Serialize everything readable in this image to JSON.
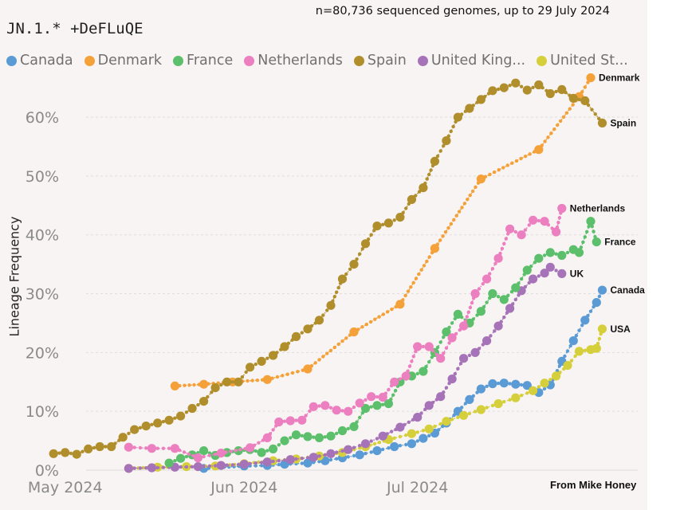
{
  "subtitle": "n=80,736 sequenced genomes, up to 29 July 2024",
  "title": "JN.1.* +DeFLuQE",
  "credit": "From Mike Honey",
  "legend": [
    {
      "label": "Canada",
      "color": "#5b9bd5"
    },
    {
      "label": "Denmark",
      "color": "#f4a13a"
    },
    {
      "label": "France",
      "color": "#5cbf6b"
    },
    {
      "label": "Netherlands",
      "color": "#ec7fbf"
    },
    {
      "label": "Spain",
      "color": "#b08e2c"
    },
    {
      "label": "United King...",
      "color": "#a673b8"
    },
    {
      "label": "United St...",
      "color": "#d6cf3c"
    }
  ],
  "chart_data": {
    "type": "line",
    "ylabel": "Lineage Frequency",
    "ylim": [
      0,
      68
    ],
    "y_ticks": [
      {
        "value": 0,
        "label": "0%"
      },
      {
        "value": 10,
        "label": "10%"
      },
      {
        "value": 20,
        "label": "20%"
      },
      {
        "value": 30,
        "label": "30%"
      },
      {
        "value": 40,
        "label": "40%"
      },
      {
        "value": 50,
        "label": "50%"
      },
      {
        "value": 60,
        "label": "60%"
      }
    ],
    "x_ticks": [
      {
        "value": "2024-05-01",
        "label": "May 2024"
      },
      {
        "value": "2024-06-01",
        "label": "Jun 2024"
      },
      {
        "value": "2024-07-01",
        "label": "Jul 2024"
      }
    ],
    "xlim": [
      "2024-04-28",
      "2024-08-04"
    ],
    "series": [
      {
        "name": "Canada",
        "end_label": "Canada",
        "color": "#5b9bd5",
        "points": [
          [
            "2024-05-25",
            0.3
          ],
          [
            "2024-06-01",
            0.7
          ],
          [
            "2024-06-05",
            0.8
          ],
          [
            "2024-06-08",
            1.0
          ],
          [
            "2024-06-12",
            1.2
          ],
          [
            "2024-06-15",
            1.6
          ],
          [
            "2024-06-18",
            2.1
          ],
          [
            "2024-06-21",
            2.6
          ],
          [
            "2024-06-24",
            3.3
          ],
          [
            "2024-06-27",
            4.0
          ],
          [
            "2024-06-30",
            4.5
          ],
          [
            "2024-07-02",
            5.4
          ],
          [
            "2024-07-04",
            6.3
          ],
          [
            "2024-07-06",
            8.0
          ],
          [
            "2024-07-08",
            10.0
          ],
          [
            "2024-07-10",
            12.0
          ],
          [
            "2024-07-12",
            13.8
          ],
          [
            "2024-07-14",
            14.7
          ],
          [
            "2024-07-16",
            14.8
          ],
          [
            "2024-07-18",
            14.6
          ],
          [
            "2024-07-20",
            14.4
          ],
          [
            "2024-07-22",
            13.2
          ],
          [
            "2024-07-24",
            14.5
          ],
          [
            "2024-07-26",
            18.5
          ],
          [
            "2024-07-28",
            22.0
          ],
          [
            "2024-07-30",
            25.5
          ],
          [
            "2024-08-01",
            28.5
          ],
          [
            "2024-08-02",
            30.6
          ]
        ]
      },
      {
        "name": "Denmark",
        "end_label": "Denmark",
        "color": "#f4a13a",
        "points": [
          [
            "2024-05-20",
            14.3
          ],
          [
            "2024-05-25",
            14.6
          ],
          [
            "2024-05-30",
            15.0
          ],
          [
            "2024-06-05",
            15.4
          ],
          [
            "2024-06-12",
            17.2
          ],
          [
            "2024-06-20",
            23.5
          ],
          [
            "2024-06-28",
            28.2
          ],
          [
            "2024-07-04",
            37.7
          ],
          [
            "2024-07-12",
            49.5
          ],
          [
            "2024-07-22",
            54.5
          ],
          [
            "2024-07-29",
            63.5
          ],
          [
            "2024-07-31",
            66.7
          ]
        ]
      },
      {
        "name": "France",
        "end_label": "France",
        "color": "#5cbf6b",
        "points": [
          [
            "2024-05-19",
            1.2
          ],
          [
            "2024-05-21",
            2.0
          ],
          [
            "2024-05-23",
            2.6
          ],
          [
            "2024-05-25",
            3.3
          ],
          [
            "2024-05-27",
            2.5
          ],
          [
            "2024-05-29",
            3.0
          ],
          [
            "2024-05-31",
            3.3
          ],
          [
            "2024-06-02",
            3.5
          ],
          [
            "2024-06-04",
            3.0
          ],
          [
            "2024-06-06",
            3.6
          ],
          [
            "2024-06-08",
            5.0
          ],
          [
            "2024-06-10",
            6.0
          ],
          [
            "2024-06-12",
            5.7
          ],
          [
            "2024-06-14",
            5.5
          ],
          [
            "2024-06-16",
            5.8
          ],
          [
            "2024-06-18",
            6.7
          ],
          [
            "2024-06-20",
            7.4
          ],
          [
            "2024-06-22",
            10.5
          ],
          [
            "2024-06-24",
            11.0
          ],
          [
            "2024-06-26",
            11.3
          ],
          [
            "2024-06-28",
            15.0
          ],
          [
            "2024-06-30",
            16.0
          ],
          [
            "2024-07-02",
            16.8
          ],
          [
            "2024-07-04",
            20.0
          ],
          [
            "2024-07-06",
            23.5
          ],
          [
            "2024-07-08",
            26.5
          ],
          [
            "2024-07-10",
            25.0
          ],
          [
            "2024-07-12",
            27.0
          ],
          [
            "2024-07-14",
            30.0
          ],
          [
            "2024-07-16",
            29.0
          ],
          [
            "2024-07-18",
            31.0
          ],
          [
            "2024-07-20",
            34.0
          ],
          [
            "2024-07-22",
            36.0
          ],
          [
            "2024-07-24",
            37.0
          ],
          [
            "2024-07-26",
            36.5
          ],
          [
            "2024-07-28",
            37.5
          ],
          [
            "2024-07-29",
            37.0
          ],
          [
            "2024-07-31",
            42.3
          ],
          [
            "2024-08-01",
            38.8
          ]
        ]
      },
      {
        "name": "Netherlands",
        "end_label": "Netherlands",
        "color": "#ec7fbf",
        "points": [
          [
            "2024-05-12",
            3.9
          ],
          [
            "2024-05-16",
            3.7
          ],
          [
            "2024-05-20",
            3.7
          ],
          [
            "2024-05-24",
            2.1
          ],
          [
            "2024-05-28",
            2.9
          ],
          [
            "2024-06-02",
            3.8
          ],
          [
            "2024-06-05",
            5.5
          ],
          [
            "2024-06-07",
            8.2
          ],
          [
            "2024-06-09",
            8.4
          ],
          [
            "2024-06-11",
            8.5
          ],
          [
            "2024-06-13",
            10.8
          ],
          [
            "2024-06-15",
            11.0
          ],
          [
            "2024-06-17",
            10.2
          ],
          [
            "2024-06-19",
            10.0
          ],
          [
            "2024-06-21",
            11.4
          ],
          [
            "2024-06-23",
            12.5
          ],
          [
            "2024-06-25",
            12.4
          ],
          [
            "2024-06-27",
            15.0
          ],
          [
            "2024-06-29",
            16.0
          ],
          [
            "2024-07-01",
            21.0
          ],
          [
            "2024-07-03",
            21.0
          ],
          [
            "2024-07-05",
            19.0
          ],
          [
            "2024-07-07",
            22.5
          ],
          [
            "2024-07-09",
            24.5
          ],
          [
            "2024-07-11",
            30.0
          ],
          [
            "2024-07-13",
            32.5
          ],
          [
            "2024-07-15",
            36.0
          ],
          [
            "2024-07-17",
            41.0
          ],
          [
            "2024-07-19",
            40.0
          ],
          [
            "2024-07-21",
            42.5
          ],
          [
            "2024-07-23",
            42.3
          ],
          [
            "2024-07-25",
            40.5
          ],
          [
            "2024-07-26",
            44.5
          ]
        ]
      },
      {
        "name": "Spain",
        "end_label": "Spain",
        "color": "#b08e2c",
        "points": [
          [
            "2024-04-29",
            2.8
          ],
          [
            "2024-05-01",
            3.0
          ],
          [
            "2024-05-03",
            2.7
          ],
          [
            "2024-05-05",
            3.6
          ],
          [
            "2024-05-07",
            4.0
          ],
          [
            "2024-05-09",
            4.0
          ],
          [
            "2024-05-11",
            5.6
          ],
          [
            "2024-05-13",
            6.9
          ],
          [
            "2024-05-15",
            7.5
          ],
          [
            "2024-05-17",
            8.0
          ],
          [
            "2024-05-19",
            8.5
          ],
          [
            "2024-05-21",
            9.2
          ],
          [
            "2024-05-23",
            10.5
          ],
          [
            "2024-05-25",
            11.7
          ],
          [
            "2024-05-27",
            14.0
          ],
          [
            "2024-05-29",
            15.0
          ],
          [
            "2024-05-31",
            15.0
          ],
          [
            "2024-06-02",
            17.5
          ],
          [
            "2024-06-04",
            18.5
          ],
          [
            "2024-06-06",
            19.5
          ],
          [
            "2024-06-08",
            21.0
          ],
          [
            "2024-06-10",
            22.7
          ],
          [
            "2024-06-12",
            24.0
          ],
          [
            "2024-06-14",
            25.5
          ],
          [
            "2024-06-16",
            28.0
          ],
          [
            "2024-06-18",
            32.5
          ],
          [
            "2024-06-20",
            35.0
          ],
          [
            "2024-06-22",
            38.5
          ],
          [
            "2024-06-24",
            41.5
          ],
          [
            "2024-06-26",
            42.0
          ],
          [
            "2024-06-28",
            43.0
          ],
          [
            "2024-06-30",
            46.0
          ],
          [
            "2024-07-02",
            48.0
          ],
          [
            "2024-07-04",
            52.5
          ],
          [
            "2024-07-06",
            56.0
          ],
          [
            "2024-07-08",
            60.0
          ],
          [
            "2024-07-10",
            61.5
          ],
          [
            "2024-07-12",
            63.0
          ],
          [
            "2024-07-14",
            64.5
          ],
          [
            "2024-07-16",
            65.0
          ],
          [
            "2024-07-18",
            65.8
          ],
          [
            "2024-07-20",
            64.6
          ],
          [
            "2024-07-22",
            65.5
          ],
          [
            "2024-07-24",
            64.0
          ],
          [
            "2024-07-26",
            64.7
          ],
          [
            "2024-07-28",
            63.2
          ],
          [
            "2024-07-30",
            62.8
          ],
          [
            "2024-08-02",
            59.0
          ]
        ]
      },
      {
        "name": "United Kingdom",
        "end_label": "UK",
        "color": "#a673b8",
        "points": [
          [
            "2024-05-12",
            0.3
          ],
          [
            "2024-05-16",
            0.4
          ],
          [
            "2024-05-20",
            0.5
          ],
          [
            "2024-05-24",
            0.6
          ],
          [
            "2024-05-28",
            0.8
          ],
          [
            "2024-06-01",
            1.0
          ],
          [
            "2024-06-05",
            1.4
          ],
          [
            "2024-06-09",
            1.8
          ],
          [
            "2024-06-13",
            2.2
          ],
          [
            "2024-06-16",
            2.8
          ],
          [
            "2024-06-19",
            3.5
          ],
          [
            "2024-06-22",
            4.5
          ],
          [
            "2024-06-25",
            5.8
          ],
          [
            "2024-06-28",
            7.3
          ],
          [
            "2024-07-01",
            9.0
          ],
          [
            "2024-07-03",
            11.0
          ],
          [
            "2024-07-05",
            12.5
          ],
          [
            "2024-07-07",
            15.5
          ],
          [
            "2024-07-09",
            19.0
          ],
          [
            "2024-07-11",
            20.0
          ],
          [
            "2024-07-13",
            22.0
          ],
          [
            "2024-07-15",
            24.5
          ],
          [
            "2024-07-17",
            27.5
          ],
          [
            "2024-07-19",
            30.5
          ],
          [
            "2024-07-21",
            32.5
          ],
          [
            "2024-07-23",
            33.5
          ],
          [
            "2024-07-24",
            34.5
          ],
          [
            "2024-07-26",
            33.4
          ]
        ]
      },
      {
        "name": "United States",
        "end_label": "USA",
        "color": "#d6cf3c",
        "points": [
          [
            "2024-05-12",
            0.3
          ],
          [
            "2024-05-17",
            0.5
          ],
          [
            "2024-05-22",
            0.6
          ],
          [
            "2024-05-27",
            0.7
          ],
          [
            "2024-06-01",
            1.1
          ],
          [
            "2024-06-06",
            1.6
          ],
          [
            "2024-06-10",
            1.9
          ],
          [
            "2024-06-14",
            2.4
          ],
          [
            "2024-06-18",
            3.0
          ],
          [
            "2024-06-22",
            4.0
          ],
          [
            "2024-06-26",
            5.2
          ],
          [
            "2024-06-30",
            6.2
          ],
          [
            "2024-07-03",
            7.0
          ],
          [
            "2024-07-06",
            8.3
          ],
          [
            "2024-07-09",
            9.3
          ],
          [
            "2024-07-12",
            10.3
          ],
          [
            "2024-07-15",
            11.3
          ],
          [
            "2024-07-18",
            12.3
          ],
          [
            "2024-07-21",
            13.5
          ],
          [
            "2024-07-23",
            14.8
          ],
          [
            "2024-07-25",
            16.0
          ],
          [
            "2024-07-27",
            17.8
          ],
          [
            "2024-07-29",
            20.2
          ],
          [
            "2024-07-31",
            20.5
          ],
          [
            "2024-08-01",
            20.7
          ],
          [
            "2024-08-02",
            24.0
          ]
        ]
      }
    ]
  }
}
